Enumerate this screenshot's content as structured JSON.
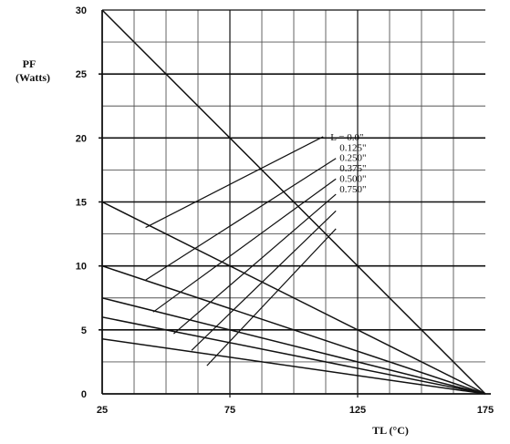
{
  "chart_data": {
    "type": "line",
    "title": "",
    "ylabel": "PF (Watts)",
    "ylabel_lines": [
      "PF",
      "(Watts)"
    ],
    "xlabel": "TL (°C)",
    "x_ticks": [
      25,
      75,
      125,
      175
    ],
    "y_ticks": [
      0,
      5,
      10,
      15,
      20,
      25,
      30
    ],
    "xlim": [
      25,
      175
    ],
    "ylim": [
      0,
      30
    ],
    "x_minor_step": 12.5,
    "y_minor_step": 2.5,
    "grid": true,
    "legend_title": "L = ",
    "series": [
      {
        "name": "0.0\"",
        "x": [
          25,
          175
        ],
        "y": [
          30,
          0
        ]
      },
      {
        "name": "0.125\"",
        "x": [
          25,
          175
        ],
        "y": [
          15,
          0
        ]
      },
      {
        "name": "0.250\"",
        "x": [
          25,
          175
        ],
        "y": [
          10,
          0
        ]
      },
      {
        "name": "0.375\"",
        "x": [
          25,
          175
        ],
        "y": [
          7.5,
          0
        ]
      },
      {
        "name": "0.500\"",
        "x": [
          25,
          175
        ],
        "y": [
          6,
          0
        ]
      },
      {
        "name": "0.750\"",
        "x": [
          25,
          175
        ],
        "y": [
          4.3,
          0
        ]
      }
    ],
    "leader_lines": [
      {
        "from": [
          42,
          13.0
        ],
        "to": [
          111.5,
          20.1
        ]
      },
      {
        "from": [
          42,
          8.9
        ],
        "to": [
          116.5,
          18.4
        ]
      },
      {
        "from": [
          45,
          6.4
        ],
        "to": [
          116.5,
          16.8
        ]
      },
      {
        "from": [
          53,
          4.7
        ],
        "to": [
          116.5,
          15.6
        ]
      },
      {
        "from": [
          60,
          3.4
        ],
        "to": [
          116.5,
          14.3
        ]
      },
      {
        "from": [
          66,
          2.2
        ],
        "to": [
          116.5,
          12.9
        ]
      }
    ]
  }
}
